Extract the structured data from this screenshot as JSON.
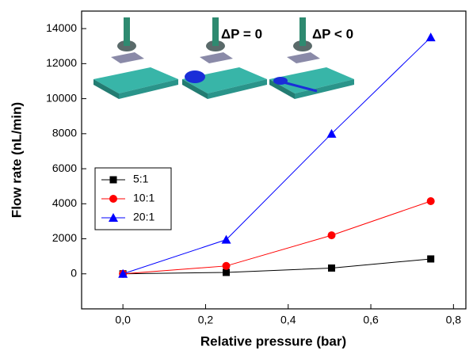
{
  "chart_data": {
    "type": "line",
    "x_label": "Relative pressure (bar)",
    "y_label": "Flow rate (nL/min)",
    "x": [
      0,
      0.25,
      0.505,
      0.745
    ],
    "series": [
      {
        "name": "5:1",
        "color": "#000000",
        "marker": "square",
        "values": [
          0,
          80,
          330,
          850
        ]
      },
      {
        "name": "10:1",
        "color": "#ff0000",
        "marker": "circle",
        "values": [
          0,
          450,
          2200,
          4150
        ]
      },
      {
        "name": "20:1",
        "color": "#0000ff",
        "marker": "triangle",
        "values": [
          0,
          1950,
          8000,
          13500
        ]
      }
    ],
    "xlim": [
      -0.1,
      0.83
    ],
    "ylim": [
      -2000,
      15000
    ],
    "xticks": [
      {
        "value": 0,
        "label": "0,0"
      },
      {
        "value": 0.2,
        "label": "0,2"
      },
      {
        "value": 0.4,
        "label": "0,4"
      },
      {
        "value": 0.6,
        "label": "0,6"
      },
      {
        "value": 0.8,
        "label": "0,8"
      }
    ],
    "yticks": [
      0,
      2000,
      4000,
      6000,
      8000,
      10000,
      12000,
      14000
    ],
    "annotations": [
      "ΔP = 0",
      "ΔP < 0"
    ],
    "legend": "center-left"
  }
}
